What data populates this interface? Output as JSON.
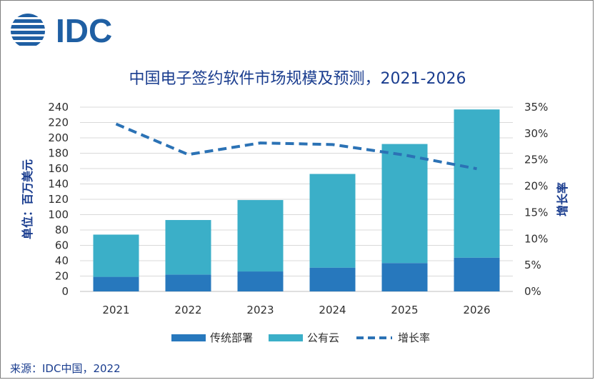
{
  "logo": {
    "text": "IDC"
  },
  "chart_data": {
    "type": "bar",
    "title": "中国电子签约软件市场规模及预测，2021-2026",
    "categories": [
      "2021",
      "2022",
      "2023",
      "2024",
      "2025",
      "2026"
    ],
    "series": [
      {
        "name": "传统部署",
        "kind": "stacked-bar",
        "color": "#2778bd",
        "values": [
          19,
          22,
          26,
          31,
          37,
          44
        ]
      },
      {
        "name": "公有云",
        "kind": "stacked-bar",
        "color": "#3bafc8",
        "values": [
          55,
          71,
          93,
          122,
          155,
          193
        ]
      },
      {
        "name": "增长率",
        "kind": "line",
        "axis": "right",
        "style": "dashed",
        "color": "#2b72b5",
        "values": [
          31.8,
          26.0,
          28.2,
          27.9,
          25.9,
          23.3
        ]
      }
    ],
    "ylabel": "单位：百万美元",
    "ylabel_right": "增长率",
    "ylim": [
      0,
      240
    ],
    "yticks": [
      "240",
      "220",
      "200",
      "180",
      "160",
      "140",
      "120",
      "100",
      "80",
      "60",
      "40",
      "20",
      "0"
    ],
    "ylim_right": [
      0,
      35
    ],
    "yticks_right": [
      "35%",
      "30%",
      "25%",
      "20%",
      "15%",
      "10%",
      "5%",
      "0%"
    ],
    "grid": true,
    "legend_position": "bottom"
  },
  "source": "来源：IDC中国，2022"
}
